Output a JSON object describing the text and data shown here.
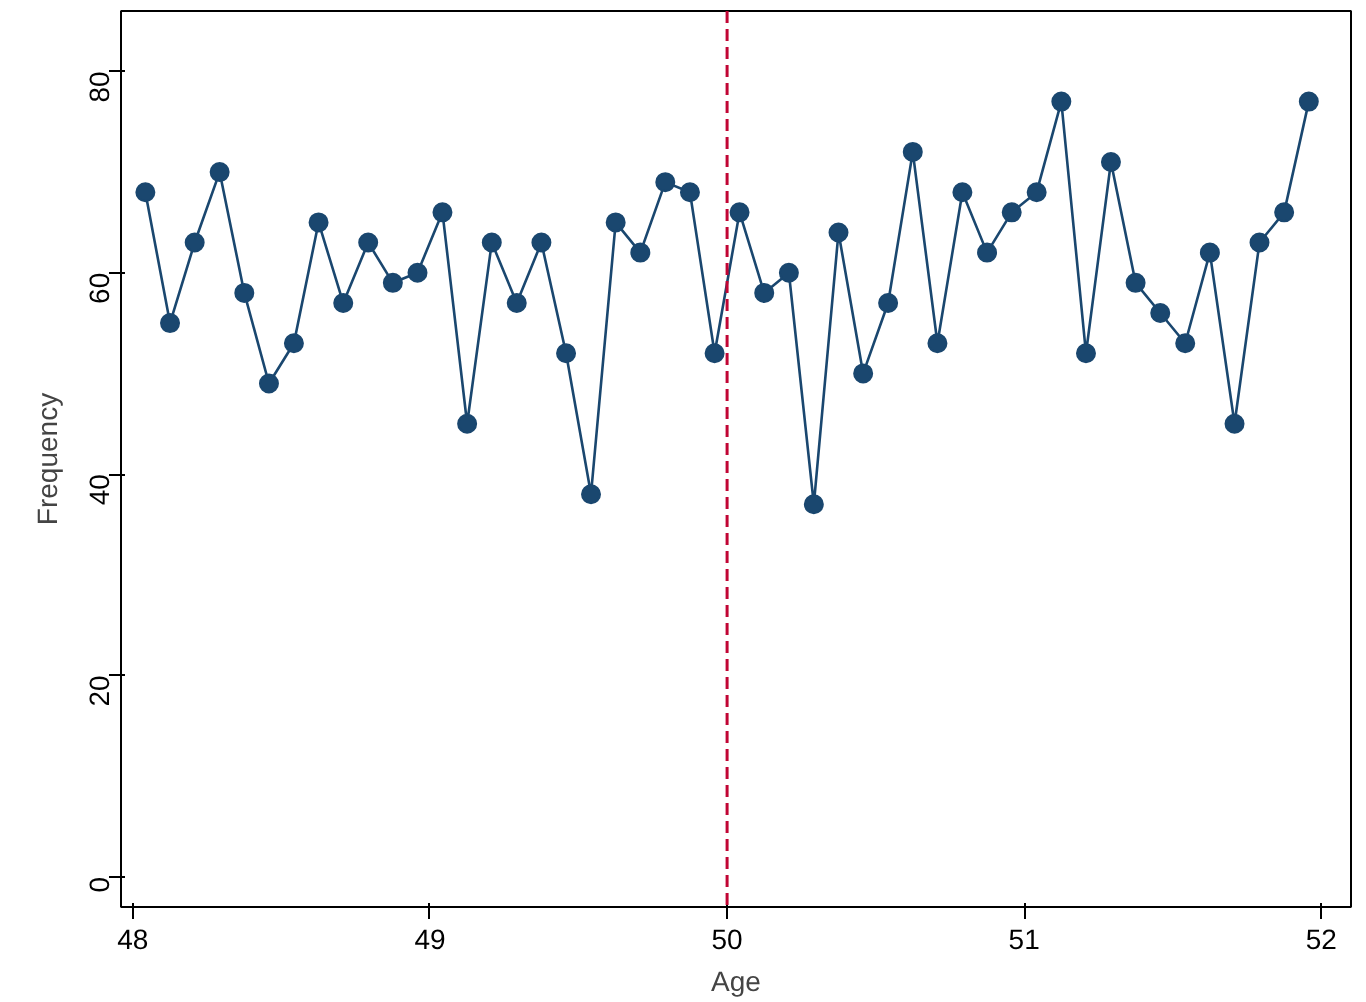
{
  "chart_data": {
    "type": "line",
    "xlabel": "Age",
    "ylabel": "Frequency",
    "x": [
      48.042,
      48.125,
      48.208,
      48.292,
      48.375,
      48.458,
      48.542,
      48.625,
      48.708,
      48.792,
      48.875,
      48.958,
      49.042,
      49.125,
      49.208,
      49.292,
      49.375,
      49.458,
      49.542,
      49.625,
      49.708,
      49.792,
      49.875,
      49.958,
      50.042,
      50.125,
      50.208,
      50.292,
      50.375,
      50.458,
      50.542,
      50.625,
      50.708,
      50.792,
      50.875,
      50.958,
      51.042,
      51.125,
      51.208,
      51.292,
      51.375,
      51.458,
      51.542,
      51.625,
      51.708,
      51.792,
      51.875,
      51.958
    ],
    "series": [
      {
        "color": "#1a476f",
        "values": [
          68,
          55,
          63,
          70,
          58,
          49,
          53,
          65,
          57,
          63,
          59,
          60,
          66,
          45,
          63,
          57,
          63,
          52,
          38,
          65,
          62,
          69,
          68,
          52,
          66,
          58,
          60,
          37,
          64,
          50,
          57,
          72,
          53,
          68,
          62,
          66,
          68,
          77,
          52,
          71,
          59,
          56,
          53,
          62,
          45,
          63,
          66,
          77
        ]
      }
    ],
    "marker": "circle",
    "xlim": [
      47.96,
      52.1
    ],
    "ylim": [
      -3,
      86
    ],
    "xticks": [
      48,
      49,
      50,
      51,
      52
    ],
    "yticks": [
      0,
      20,
      40,
      60,
      80
    ],
    "ref_lines": [
      {
        "axis": "x",
        "value": 50,
        "color": "#c10534",
        "line_style": "dashed"
      }
    ],
    "grid": false
  }
}
